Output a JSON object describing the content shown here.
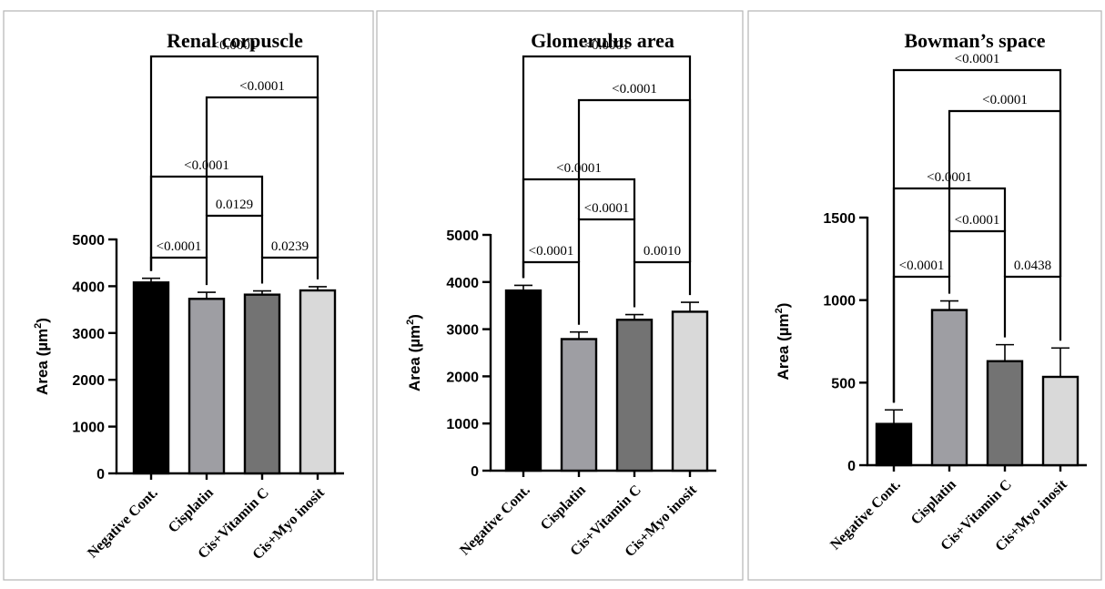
{
  "chart_data": [
    {
      "type": "bar",
      "title": "Renal corpuscle",
      "ylabel": "Area (µm²)",
      "ylabel_text": "Area (µm",
      "ylabel_sup": "2",
      "ylabel_close": ")",
      "categories": [
        "Negative Cont.",
        "Cisplatin",
        "Cis+Vitamin C",
        "Cis+Myo inosit"
      ],
      "values": [
        4080,
        3730,
        3820,
        3910
      ],
      "errors": [
        90,
        140,
        80,
        80
      ],
      "colors": [
        "#000000",
        "#9e9ea3",
        "#737373",
        "#d9d9d9"
      ],
      "ylim": [
        0,
        5000
      ],
      "yticks": [
        0,
        1000,
        2000,
        3000,
        4000,
        5000
      ],
      "comparisons": [
        {
          "a": 0,
          "b": 1,
          "label": "<0.0001"
        },
        {
          "a": 2,
          "b": 3,
          "label": "0.0239"
        },
        {
          "a": 1,
          "b": 2,
          "label": "0.0129"
        },
        {
          "a": 0,
          "b": 2,
          "label": "<0.0001"
        },
        {
          "a": 1,
          "b": 3,
          "label": "<0.0001"
        },
        {
          "a": 0,
          "b": 3,
          "label": "<0.0001"
        }
      ]
    },
    {
      "type": "bar",
      "title": "Glomerulus area",
      "ylabel": "Area (µm²)",
      "ylabel_text": "Area (µm",
      "ylabel_sup": "2",
      "ylabel_close": ")",
      "categories": [
        "Negative Cont.",
        "Cisplatin",
        "Cis+Vitamin C",
        "Cis+Myo inosit"
      ],
      "values": [
        3820,
        2790,
        3200,
        3370
      ],
      "errors": [
        110,
        150,
        110,
        200
      ],
      "colors": [
        "#000000",
        "#9e9ea3",
        "#737373",
        "#d9d9d9"
      ],
      "ylim": [
        0,
        5000
      ],
      "yticks": [
        0,
        1000,
        2000,
        3000,
        4000,
        5000
      ],
      "comparisons": [
        {
          "a": 0,
          "b": 1,
          "label": "<0.0001"
        },
        {
          "a": 2,
          "b": 3,
          "label": "0.0010"
        },
        {
          "a": 1,
          "b": 2,
          "label": "<0.0001"
        },
        {
          "a": 0,
          "b": 2,
          "label": "<0.0001"
        },
        {
          "a": 1,
          "b": 3,
          "label": "<0.0001"
        },
        {
          "a": 0,
          "b": 3,
          "label": "<0.0001"
        }
      ]
    },
    {
      "type": "bar",
      "title": "Bowman’s space",
      "ylabel": "Area (µm²)",
      "ylabel_text": "Area (µm",
      "ylabel_sup": "2",
      "ylabel_close": ")",
      "categories": [
        "Negative Cont.",
        "Cisplatin",
        "Cis+Vitamin C",
        "Cis+Myo inosit"
      ],
      "values": [
        250,
        940,
        630,
        535
      ],
      "errors": [
        85,
        55,
        100,
        175
      ],
      "colors": [
        "#000000",
        "#9e9ea3",
        "#737373",
        "#d9d9d9"
      ],
      "ylim": [
        0,
        1500
      ],
      "yticks": [
        0,
        500,
        1000,
        1500
      ],
      "comparisons": [
        {
          "a": 0,
          "b": 1,
          "label": "<0.0001"
        },
        {
          "a": 2,
          "b": 3,
          "label": "0.0438"
        },
        {
          "a": 1,
          "b": 2,
          "label": "<0.0001"
        },
        {
          "a": 0,
          "b": 2,
          "label": "<0.0001"
        },
        {
          "a": 1,
          "b": 3,
          "label": "<0.0001"
        },
        {
          "a": 0,
          "b": 3,
          "label": "<0.0001"
        }
      ]
    }
  ]
}
